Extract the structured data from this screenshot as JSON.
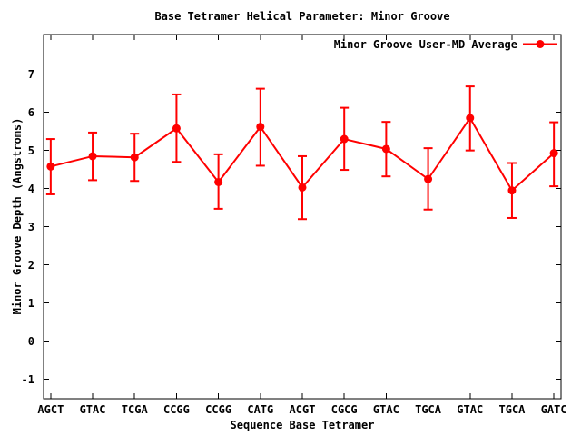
{
  "chart_data": {
    "type": "line",
    "title": "Base Tetramer Helical Parameter: Minor Groove",
    "xlabel": "Sequence Base Tetramer",
    "ylabel": "Minor Groove Depth (Angstroms)",
    "categories": [
      "AGCT",
      "GTAC",
      "TCGA",
      "CCGG",
      "CCGG",
      "CATG",
      "ACGT",
      "CGCG",
      "GTAC",
      "TGCA",
      "GTAC",
      "TGCA",
      "GATC"
    ],
    "series": [
      {
        "name": "Minor Groove User-MD Average",
        "color": "#ff0000",
        "marker": "filled-circle",
        "style": "line-with-yerrorbars",
        "values": [
          4.58,
          4.85,
          4.82,
          5.58,
          4.17,
          5.62,
          4.03,
          5.3,
          5.04,
          4.25,
          5.85,
          3.95,
          4.93
        ],
        "err_low": [
          3.85,
          4.22,
          4.2,
          4.7,
          3.47,
          4.6,
          3.2,
          4.49,
          4.32,
          3.45,
          5.0,
          3.23,
          4.06
        ],
        "err_high": [
          5.3,
          5.47,
          5.44,
          6.47,
          4.9,
          6.62,
          4.85,
          6.12,
          5.75,
          5.06,
          6.68,
          4.67,
          5.74
        ]
      }
    ],
    "yticks": [
      -1,
      0,
      1,
      2,
      3,
      4,
      5,
      6,
      7
    ],
    "ylim": [
      -1.51,
      8.04
    ],
    "xlim": [
      0.83,
      13.17
    ],
    "grid": false,
    "legend_position": "top-right-inside",
    "axis_color": "#000000",
    "text_color": "#000000",
    "background_color": "#ffffff"
  }
}
